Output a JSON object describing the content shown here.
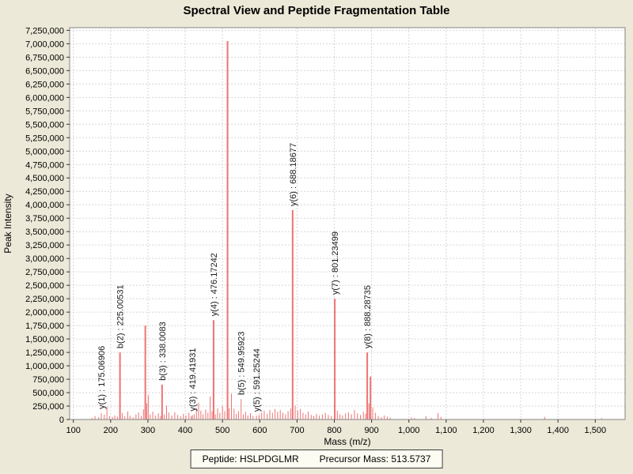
{
  "title": "Spectral View and Peptide Fragmentation Table",
  "footer": {
    "peptide": "Peptide: HSLPDGLMR",
    "precursor": "Precursor Mass: 513.5737"
  },
  "colors": {
    "background": "#ece9d8",
    "plot_background": "#ffffff",
    "grid": "#d6d6d6",
    "border": "#848484",
    "tick": "#333333",
    "text": "#000000",
    "peak": "#ee7373",
    "annotation_text": "#1a1a1a"
  },
  "chart_data": {
    "type": "bar",
    "title": "Spectral View and Peptide Fragmentation Table",
    "xlabel": "Mass (m/z)",
    "ylabel": "Peak Intensity",
    "xlim": [
      90,
      1580
    ],
    "ylim": [
      0,
      7300000
    ],
    "x_tick_min": 100,
    "x_tick_max": 1500,
    "x_tick_step": 100,
    "y_tick_min": 0,
    "y_tick_max": 7250000,
    "y_tick_step": 250000,
    "grid": true,
    "legend": "none",
    "peaks": [
      [
        150,
        30000
      ],
      [
        158,
        65000
      ],
      [
        168,
        45000
      ],
      [
        175.06906,
        120000
      ],
      [
        183,
        90000
      ],
      [
        190,
        240000
      ],
      [
        197,
        60000
      ],
      [
        205,
        45000
      ],
      [
        211,
        75000
      ],
      [
        218,
        55000
      ],
      [
        225.00531,
        1250000
      ],
      [
        231,
        120000
      ],
      [
        238,
        60000
      ],
      [
        246,
        150000
      ],
      [
        252,
        70000
      ],
      [
        260,
        45000
      ],
      [
        268,
        95000
      ],
      [
        275,
        130000
      ],
      [
        282,
        65000
      ],
      [
        288,
        190000
      ],
      [
        293,
        1750000
      ],
      [
        297,
        300000
      ],
      [
        301,
        450000
      ],
      [
        306,
        95000
      ],
      [
        313,
        145000
      ],
      [
        320,
        75000
      ],
      [
        328,
        115000
      ],
      [
        334,
        65000
      ],
      [
        338.0083,
        650000
      ],
      [
        344,
        95000
      ],
      [
        350,
        260000
      ],
      [
        356,
        130000
      ],
      [
        364,
        75000
      ],
      [
        372,
        135000
      ],
      [
        380,
        85000
      ],
      [
        388,
        60000
      ],
      [
        395,
        105000
      ],
      [
        402,
        75000
      ],
      [
        410,
        125000
      ],
      [
        416,
        65000
      ],
      [
        419.41931,
        80000
      ],
      [
        424,
        95000
      ],
      [
        430,
        210000
      ],
      [
        436,
        310000
      ],
      [
        442,
        165000
      ],
      [
        448,
        95000
      ],
      [
        455,
        185000
      ],
      [
        461,
        125000
      ],
      [
        467,
        430000
      ],
      [
        472,
        155000
      ],
      [
        476.17242,
        1850000
      ],
      [
        481,
        95000
      ],
      [
        487,
        205000
      ],
      [
        493,
        125000
      ],
      [
        500,
        255000
      ],
      [
        506,
        155000
      ],
      [
        513.57,
        7050000
      ],
      [
        518,
        210000
      ],
      [
        524,
        480000
      ],
      [
        531,
        200000
      ],
      [
        537,
        105000
      ],
      [
        543,
        155000
      ],
      [
        549.95923,
        380000
      ],
      [
        556,
        95000
      ],
      [
        562,
        145000
      ],
      [
        568,
        75000
      ],
      [
        575,
        115000
      ],
      [
        582,
        65000
      ],
      [
        591.25244,
        70000
      ],
      [
        598,
        85000
      ],
      [
        605,
        125000
      ],
      [
        612,
        165000
      ],
      [
        620,
        105000
      ],
      [
        627,
        175000
      ],
      [
        634,
        125000
      ],
      [
        641,
        195000
      ],
      [
        648,
        145000
      ],
      [
        655,
        175000
      ],
      [
        662,
        125000
      ],
      [
        669,
        95000
      ],
      [
        676,
        155000
      ],
      [
        683,
        205000
      ],
      [
        688.18677,
        3900000
      ],
      [
        695,
        260000
      ],
      [
        702,
        165000
      ],
      [
        709,
        195000
      ],
      [
        716,
        125000
      ],
      [
        723,
        95000
      ],
      [
        730,
        145000
      ],
      [
        738,
        85000
      ],
      [
        745,
        65000
      ],
      [
        752,
        105000
      ],
      [
        760,
        75000
      ],
      [
        768,
        95000
      ],
      [
        776,
        125000
      ],
      [
        784,
        85000
      ],
      [
        792,
        65000
      ],
      [
        801.23499,
        2250000
      ],
      [
        808,
        165000
      ],
      [
        815,
        95000
      ],
      [
        822,
        75000
      ],
      [
        830,
        115000
      ],
      [
        838,
        135000
      ],
      [
        846,
        95000
      ],
      [
        854,
        175000
      ],
      [
        862,
        115000
      ],
      [
        870,
        85000
      ],
      [
        878,
        145000
      ],
      [
        884,
        105000
      ],
      [
        888.28735,
        1250000
      ],
      [
        893,
        300000
      ],
      [
        897,
        800000
      ],
      [
        903,
        225000
      ],
      [
        910,
        125000
      ],
      [
        918,
        65000
      ],
      [
        926,
        45000
      ],
      [
        934,
        75000
      ],
      [
        942,
        55000
      ],
      [
        950,
        35000
      ],
      [
        1007,
        40000
      ],
      [
        1015,
        25000
      ],
      [
        1046,
        60000
      ],
      [
        1060,
        30000
      ],
      [
        1078,
        120000
      ],
      [
        1086,
        50000
      ],
      [
        1364,
        50000
      ],
      [
        1517,
        25000
      ]
    ],
    "annotations": [
      {
        "label": "y(1) : 175.06906",
        "mz": 175.06906,
        "intensity": 120000
      },
      {
        "label": "b(2) : 225.00531",
        "mz": 225.00531,
        "intensity": 1250000
      },
      {
        "label": "b(3) : 338.0083",
        "mz": 338.0083,
        "intensity": 650000
      },
      {
        "label": "y(3) : 419.41931",
        "mz": 419.41931,
        "intensity": 80000
      },
      {
        "label": "y(4) : 476.17242",
        "mz": 476.17242,
        "intensity": 1850000
      },
      {
        "label": "b(5) : 549.95923",
        "mz": 549.95923,
        "intensity": 380000
      },
      {
        "label": "y(5) : 591.25244",
        "mz": 591.25244,
        "intensity": 70000
      },
      {
        "label": "y(6) : 688.18677",
        "mz": 688.18677,
        "intensity": 3900000
      },
      {
        "label": "y(7) : 801.23499",
        "mz": 801.23499,
        "intensity": 2250000
      },
      {
        "label": "y(8) : 888.28735",
        "mz": 888.28735,
        "intensity": 1250000
      }
    ]
  }
}
